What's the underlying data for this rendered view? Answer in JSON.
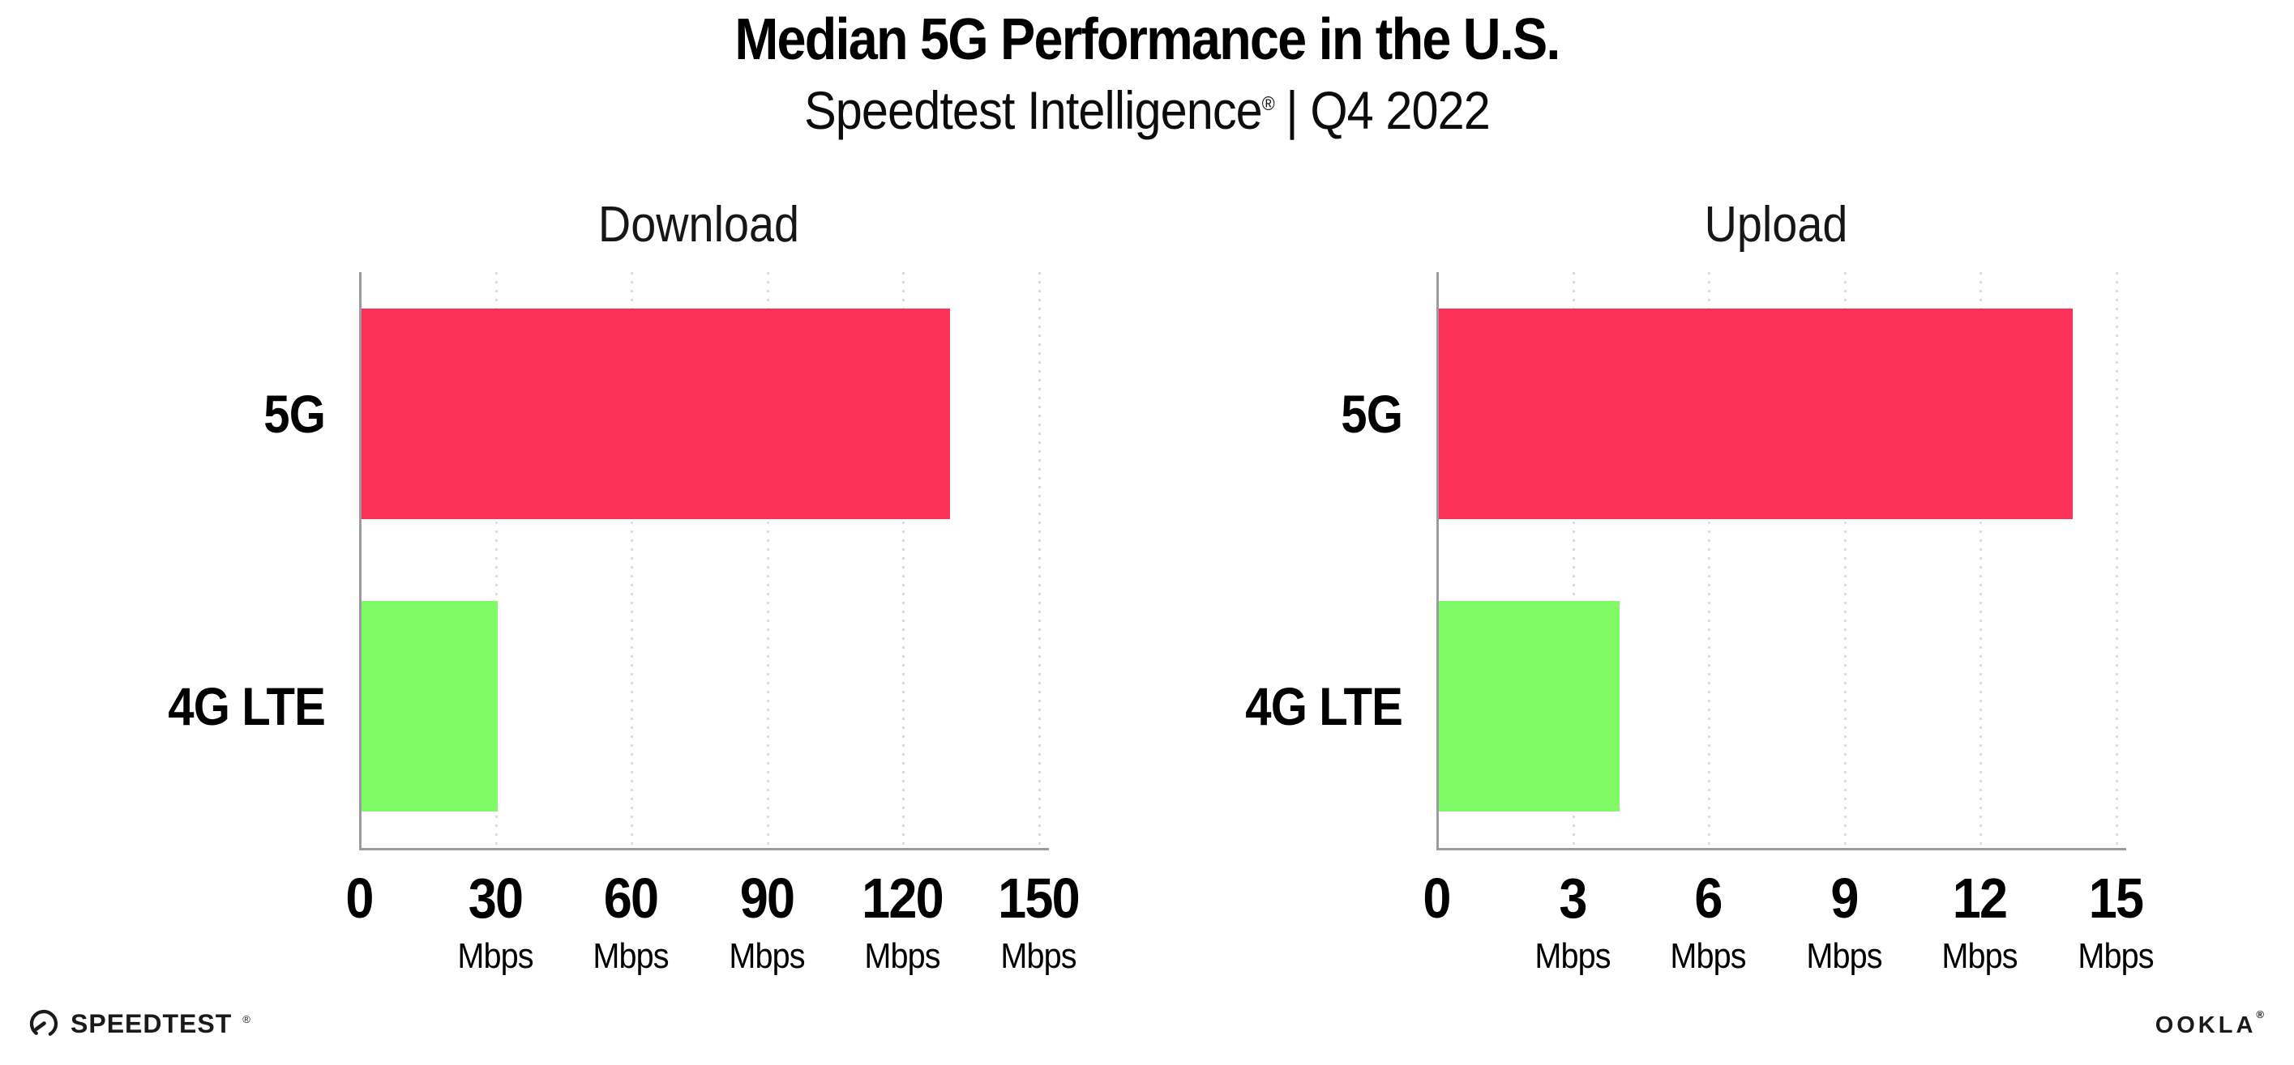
{
  "header": {
    "title": "Median 5G Performance in the U.S.",
    "subtitle_brand": "Speedtest Intelligence",
    "subtitle_registered": "®",
    "subtitle_rest": "| Q4 2022"
  },
  "chart_data": [
    {
      "type": "bar",
      "orientation": "horizontal",
      "title": "Download",
      "categories": [
        "5G",
        "4G LTE"
      ],
      "values": [
        130,
        30
      ],
      "unit": "Mbps",
      "xlim": [
        0,
        150
      ],
      "xticks": [
        0,
        30,
        60,
        90,
        120,
        150
      ],
      "tick_unit": "Mbps",
      "bar_colors": [
        "#FB3158",
        "#80FA66"
      ],
      "grid": "vertical dotted",
      "legend": "none"
    },
    {
      "type": "bar",
      "orientation": "horizontal",
      "title": "Upload",
      "categories": [
        "5G",
        "4G LTE"
      ],
      "values": [
        14,
        4
      ],
      "unit": "Mbps",
      "xlim": [
        0,
        15
      ],
      "xticks": [
        0,
        3,
        6,
        9,
        12,
        15
      ],
      "tick_unit": "Mbps",
      "bar_colors": [
        "#FB3158",
        "#80FA66"
      ],
      "grid": "vertical dotted",
      "legend": "none"
    }
  ],
  "footer": {
    "speedtest_label": "SPEEDTEST",
    "speedtest_registered": "®",
    "speedtest_icon": "speedtest-gauge-icon",
    "ookla_label": "OOKLA",
    "ookla_registered": "®"
  },
  "colors": {
    "bar_5g": "#FB3158",
    "bar_4g_lte": "#80FA66",
    "axis": "#9B9BA1",
    "gridline": "#DCDCE8",
    "text": "#111111",
    "background": "#FFFFFF"
  }
}
